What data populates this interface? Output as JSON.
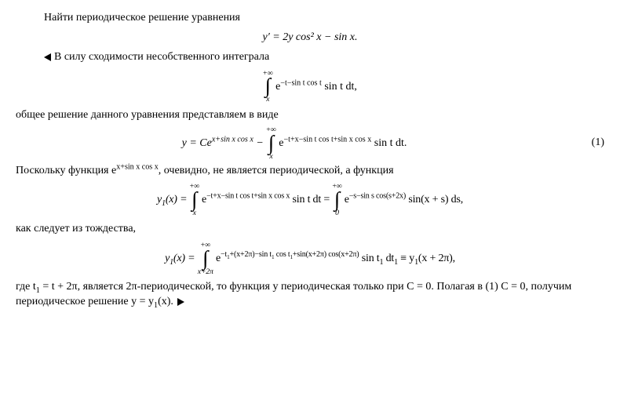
{
  "p1": "Найти периодическое решение уравнения",
  "eq1": "y′ = 2y cos² x − sin x.",
  "p2": "В силу сходимости несобственного интеграла",
  "int1_top": "+∞",
  "int1_body": "e<sup>−t−sin t cos t</sup> sin t dt,",
  "int1_bot": "x",
  "p3": "общее решение данного уравнения представляем в виде",
  "eq2_lhs": "y = Ce<sup>x+sin x cos x</sup> − ",
  "int2_top": "+∞",
  "int2_body": "e<sup>−t+x−sin t cos t+sin x cos x</sup> sin t dt.",
  "int2_bot": "x",
  "eq2_num": "(1)",
  "p4_a": "Поскольку функция e",
  "p4_sup": "x+sin x cos x",
  "p4_b": ", очевидно, не является периодической, а функция",
  "eq3_lhs": "y<sub>1</sub>(x) = ",
  "int3a_top": "+∞",
  "int3a_body": "e<sup>−t+x−sin t cos t+sin x cos x</sup> sin t dt = ",
  "int3a_bot": "x",
  "int3b_top": "+∞",
  "int3b_body": "e<sup>−s−sin s cos(s+2x)</sup> sin(x + s) ds,",
  "int3b_bot": "0",
  "p5": "как следует из тождества,",
  "eq4_lhs": "y<sub>1</sub>(x) = ",
  "int4_top": "+∞",
  "int4_body": "e<sup>−t<sub>1</sub>+(x+2π)−sin t<sub>1</sub> cos t<sub>1</sub>+sin(x+2π) cos(x+2π)</sup> sin t<sub>1</sub> dt<sub>1</sub> ≡ y<sub>1</sub>(x + 2π),",
  "int4_bot": "x+2π",
  "p6": "где t<sub>1</sub> = t + 2π, является 2π-периодической, то функция y периодическая только при C = 0. Полагая в (1) C = 0, получим периодическое решение y = y<sub>1</sub>(x). "
}
